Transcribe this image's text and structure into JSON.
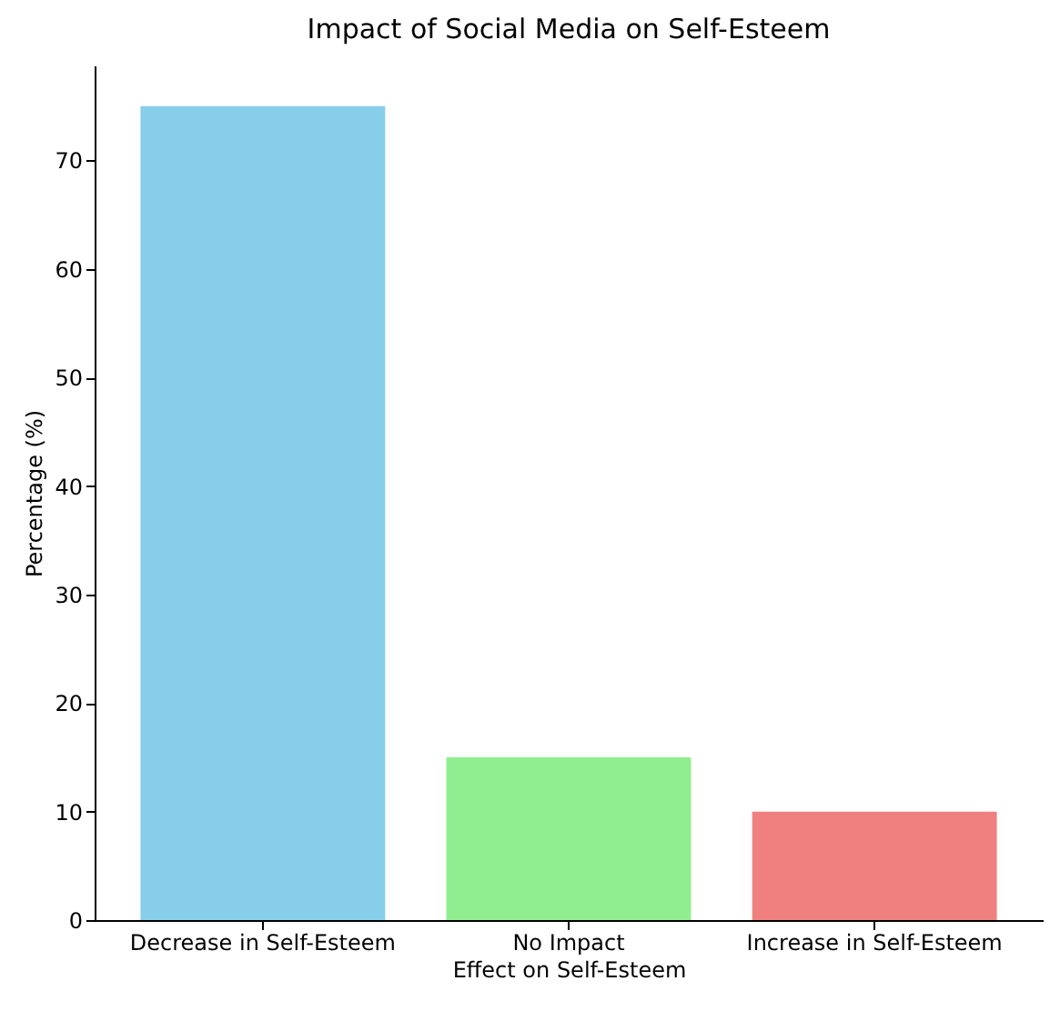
{
  "chart_data": {
    "type": "bar",
    "title": "Impact of Social Media on Self-Esteem",
    "xlabel": "Effect on Self-Esteem",
    "ylabel": "Percentage (%)",
    "categories": [
      "Decrease in Self-Esteem",
      "No Impact",
      "Increase in Self-Esteem"
    ],
    "values": [
      75,
      15,
      10
    ],
    "colors": [
      "#87ceeb",
      "#90ee90",
      "#f08080"
    ],
    "ylim": [
      0,
      78.75
    ],
    "yticks": [
      0,
      10,
      20,
      30,
      40,
      50,
      60,
      70
    ],
    "grid": false,
    "legend": false
  }
}
